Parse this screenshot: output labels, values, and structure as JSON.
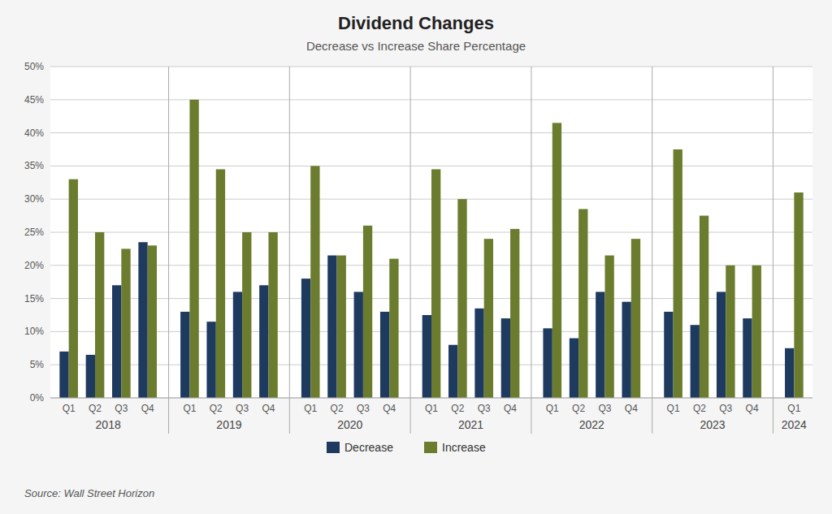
{
  "chart_data": {
    "type": "bar",
    "title": "Dividend Changes",
    "subtitle": "Decrease vs Increase Share Percentage",
    "source": "Source: Wall Street Horizon",
    "categories": [
      "Q1",
      "Q2",
      "Q3",
      "Q4",
      "Q1",
      "Q2",
      "Q3",
      "Q4",
      "Q1",
      "Q2",
      "Q3",
      "Q4",
      "Q1",
      "Q2",
      "Q3",
      "Q4",
      "Q1",
      "Q2",
      "Q3",
      "Q4",
      "Q1",
      "Q2",
      "Q3",
      "Q4",
      "Q1"
    ],
    "groups": [
      "2018",
      "2018",
      "2018",
      "2018",
      "2019",
      "2019",
      "2019",
      "2019",
      "2020",
      "2020",
      "2020",
      "2020",
      "2021",
      "2021",
      "2021",
      "2021",
      "2022",
      "2022",
      "2022",
      "2022",
      "2023",
      "2023",
      "2023",
      "2023",
      "2024"
    ],
    "series": [
      {
        "name": "Decrease",
        "color": "#1e3a5f",
        "values": [
          7,
          6.5,
          17,
          23.5,
          13,
          11.5,
          16,
          17,
          18,
          21.5,
          16,
          13,
          12.5,
          8,
          13.5,
          12,
          10.5,
          9,
          16,
          14.5,
          13,
          11,
          16,
          12,
          7.5
        ]
      },
      {
        "name": "Increase",
        "color": "#6b7c2e",
        "values": [
          33,
          25,
          22.5,
          23,
          45,
          34.5,
          25,
          25,
          35,
          21.5,
          26,
          21,
          34.5,
          30,
          24,
          25.5,
          41.5,
          28.5,
          21.5,
          24,
          37.5,
          27.5,
          20,
          20,
          31
        ]
      }
    ],
    "ylim": [
      0,
      50
    ],
    "yticks": [
      {
        "value": 0,
        "label": "0%"
      },
      {
        "value": 5,
        "label": "5%"
      },
      {
        "value": 10,
        "label": "10%"
      },
      {
        "value": 15,
        "label": "15%"
      },
      {
        "value": 20,
        "label": "20%"
      },
      {
        "value": 25,
        "label": "25%"
      },
      {
        "value": 30,
        "label": "30%"
      },
      {
        "value": 35,
        "label": "35%"
      },
      {
        "value": 40,
        "label": "40%"
      },
      {
        "value": 45,
        "label": "45%"
      },
      {
        "value": 50,
        "label": "50%"
      }
    ],
    "grid": true,
    "legend": "bottom"
  }
}
